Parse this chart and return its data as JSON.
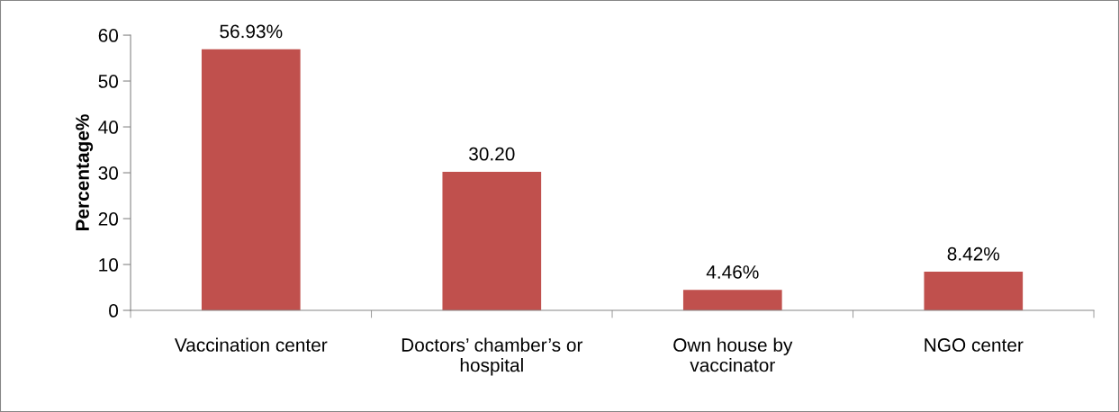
{
  "chart_data": {
    "type": "bar",
    "ylabel": "Percentage%",
    "categories": [
      "Vaccination center",
      "Doctors’ chamber’s or\nhospital",
      "Own house by\nvaccinator",
      "NGO center"
    ],
    "values": [
      56.93,
      30.2,
      4.46,
      8.42
    ],
    "value_labels": [
      "56.93%",
      "30.20",
      "4.46%",
      "8.42%"
    ],
    "color": "#c0504d",
    "ylim": [
      0,
      60
    ],
    "yticks": [
      0,
      10,
      20,
      30,
      40,
      50,
      60
    ],
    "grid": false,
    "legend": false
  }
}
